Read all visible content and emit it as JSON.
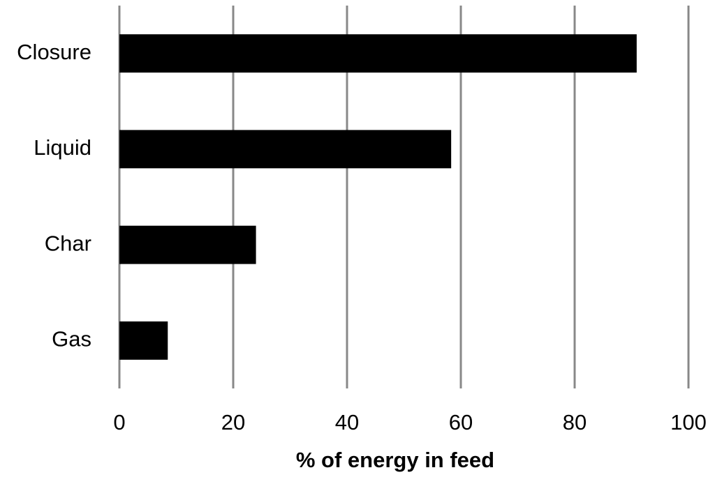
{
  "chart_data": {
    "type": "hbar",
    "categories": [
      "Closure",
      "Liquid",
      "Char",
      "Gas"
    ],
    "values": [
      90.9,
      58.3,
      24.0,
      8.5
    ],
    "color": "#000000",
    "xlabel": "% of energy in feed",
    "xlim": [
      0,
      100
    ],
    "xticks": [
      0,
      20,
      40,
      60,
      80,
      100
    ],
    "grid": true
  }
}
